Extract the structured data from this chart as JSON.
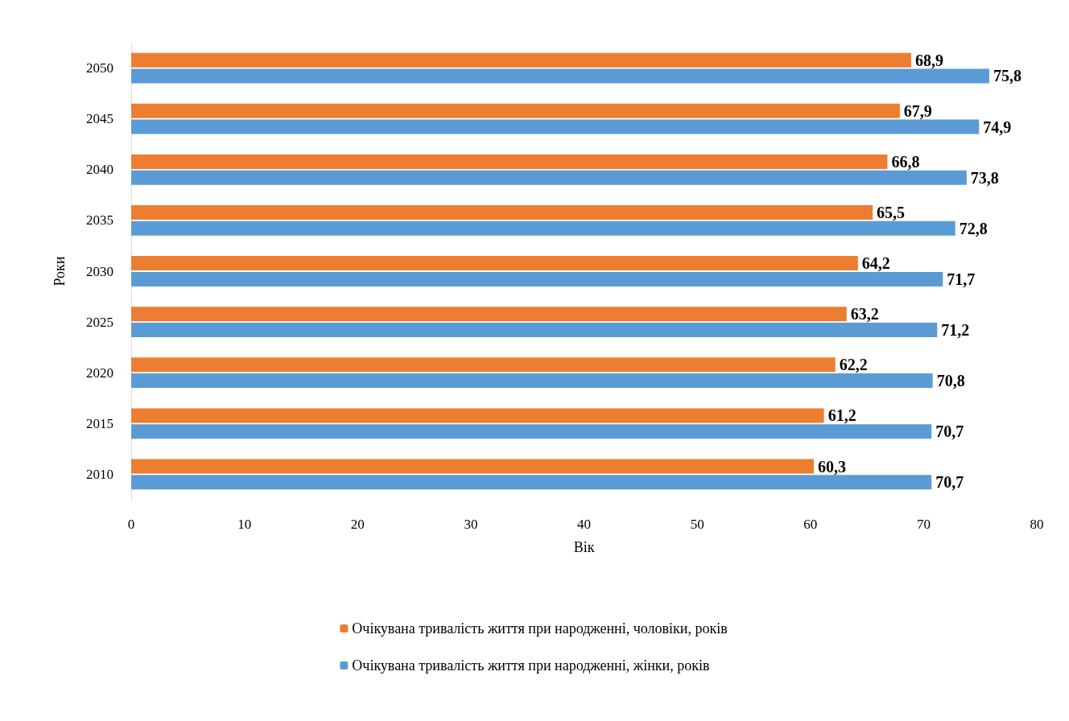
{
  "chart_data": {
    "type": "bar",
    "orientation": "horizontal",
    "xlabel": "Вік",
    "ylabel": "Роки",
    "categories": [
      "2050",
      "2045",
      "2040",
      "2035",
      "2030",
      "2025",
      "2020",
      "2015",
      "2010"
    ],
    "series": [
      {
        "name": "Очікувана тривалість життя при народженні, чоловіки, років",
        "color": "#ed7d31",
        "values": [
          68.9,
          67.9,
          66.8,
          65.5,
          64.2,
          63.2,
          62.2,
          61.2,
          60.3
        ],
        "value_labels": [
          "68,9",
          "67,9",
          "66,8",
          "65,5",
          "64,2",
          "63,2",
          "62,2",
          "61,2",
          "60,3"
        ]
      },
      {
        "name": "Очікувана тривалість життя при народженні, жінки, років",
        "color": "#5b9bd5",
        "values": [
          75.8,
          74.9,
          73.8,
          72.8,
          71.7,
          71.2,
          70.8,
          70.7,
          70.7
        ],
        "value_labels": [
          "75,8",
          "74,9",
          "73,8",
          "72,8",
          "71,7",
          "71,2",
          "70,8",
          "70,7",
          "70,7"
        ]
      }
    ],
    "xlim": [
      0,
      80
    ],
    "xticks": [
      0,
      10,
      20,
      30,
      40,
      50,
      60,
      70,
      80
    ],
    "grid": false,
    "legend": "bottom"
  }
}
